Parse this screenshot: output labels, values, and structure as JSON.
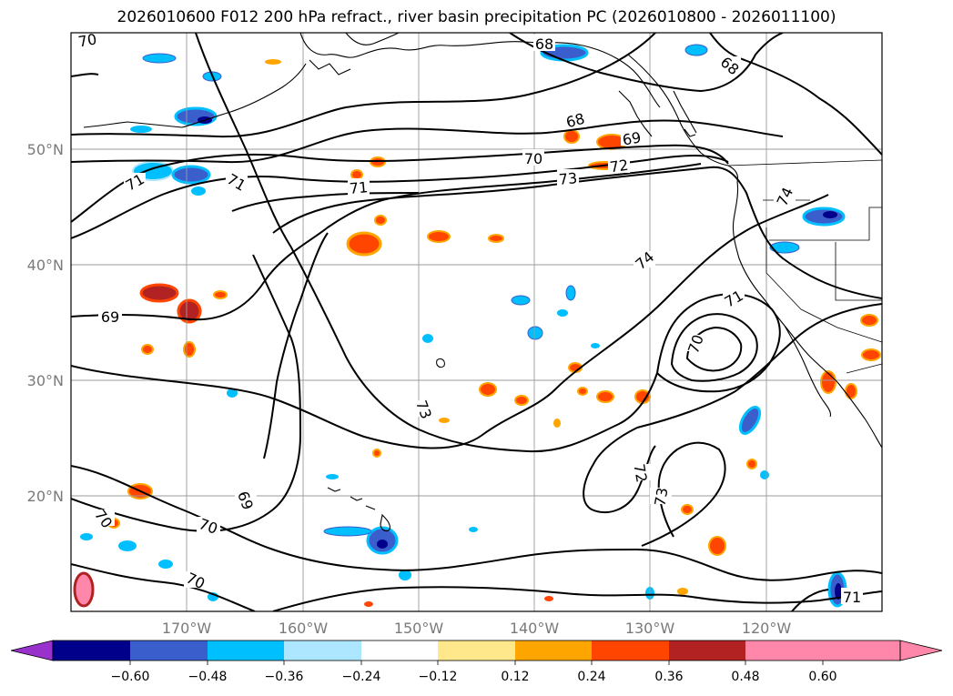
{
  "title": "2026010600 F012 200 hPa refract., river basin precipitation PC (2026010800 - 2026011100)",
  "lat_labels": [
    "50°N",
    "40°N",
    "30°N",
    "20°N"
  ],
  "lon_labels": [
    "170°W",
    "160°W",
    "150°W",
    "140°W",
    "130°W",
    "120°W"
  ],
  "contour_levels": [
    "70",
    "68",
    "68",
    "68",
    "69",
    "70",
    "71",
    "71",
    "72",
    "73",
    "71",
    "74",
    "74",
    "71",
    "70",
    "69",
    "73",
    "69",
    "72",
    "73",
    "70",
    "70",
    "70",
    "71"
  ],
  "colorbar": {
    "ticks": [
      "−0.60",
      "−0.48",
      "−0.36",
      "−0.24",
      "−0.12",
      "0.12",
      "0.24",
      "0.36",
      "0.48",
      "0.60"
    ],
    "colors": [
      "#9932cc",
      "#00008b",
      "#3a5fcd",
      "#00bfff",
      "#ade6ff",
      "#ffffff",
      "#ffe88c",
      "#ffa500",
      "#ff4500",
      "#b22222",
      "#ff88aa",
      "#ff88aa"
    ],
    "under_color": "#9932cc",
    "over_color": "#ff88aa"
  },
  "fill_colors": {
    "neg_light": "#ade6ff",
    "neg_mid": "#00bfff",
    "neg_dark": "#3a5fcd",
    "neg_darkest": "#00008b",
    "pos_light": "#ffe88c",
    "pos_mid": "#ffa500",
    "pos_dark": "#ff4500",
    "pos_darkest": "#b22222"
  }
}
